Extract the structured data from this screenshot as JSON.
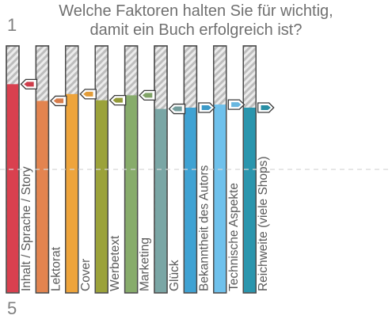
{
  "chart_data": {
    "type": "bar",
    "title": "Welche Faktoren halten Sie für wichtig, damit ein Buch erfolgreich ist?",
    "title_lines": [
      "Welche Faktoren halten Sie für wichtig,",
      "damit ein Buch erfolgreich ist?"
    ],
    "scale_top_label": "1",
    "scale_bottom_label": "5",
    "ylim": [
      1,
      5
    ],
    "reference_line": 3,
    "grid": false,
    "categories": [
      "Inhalt / Sprache / Story",
      "Lektorat",
      "Cover",
      "Werbetext",
      "Marketing",
      "Glück",
      "Bekanntheit des Autors",
      "Technische Aspekte",
      "Reichweite (viele Shops)"
    ],
    "series": [
      {
        "values": [
          1.62,
          1.89,
          1.78,
          1.88,
          1.8,
          2.02,
          2.0,
          1.95,
          2.0
        ],
        "colors": [
          "#d9404f",
          "#e3844f",
          "#eea43b",
          "#9ba23a",
          "#87ac6b",
          "#7aa6a5",
          "#3fa2d3",
          "#6fc1ec",
          "#2a95ad"
        ]
      }
    ]
  }
}
